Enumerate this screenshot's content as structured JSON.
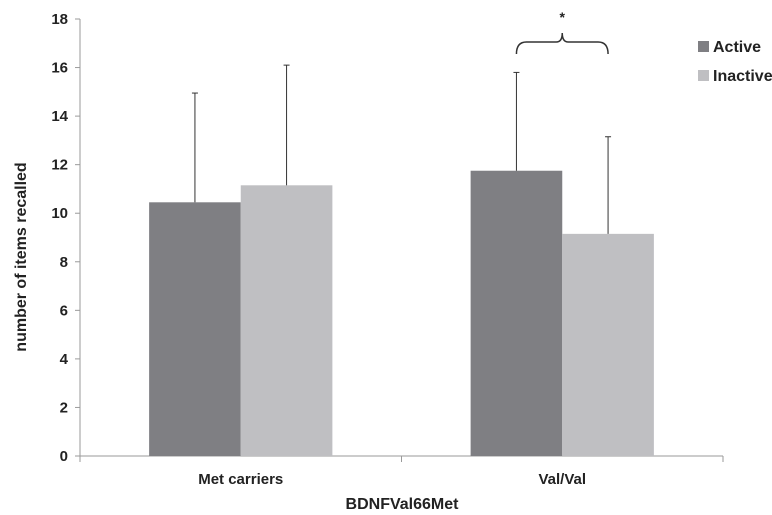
{
  "chart_data": {
    "type": "bar",
    "xlabel": "BDNFVal66Met",
    "ylabel": "number of items recalled",
    "ylim": [
      0,
      18
    ],
    "yticks": [
      0,
      2,
      4,
      6,
      8,
      10,
      12,
      14,
      16,
      18
    ],
    "categories": [
      "Met carriers",
      "Val/Val"
    ],
    "series": [
      {
        "name": "Active",
        "color": "#7f7f83",
        "values": [
          10.45,
          11.75
        ],
        "error": [
          4.5,
          4.05
        ]
      },
      {
        "name": "Inactive",
        "color": "#bfbfc2",
        "values": [
          11.15,
          9.15
        ],
        "error": [
          4.95,
          4.0
        ]
      }
    ],
    "legend_position": "top-right",
    "grid": false,
    "annotations": [
      {
        "text": "*",
        "category": "Val/Val",
        "type": "significance-bracket"
      }
    ]
  }
}
